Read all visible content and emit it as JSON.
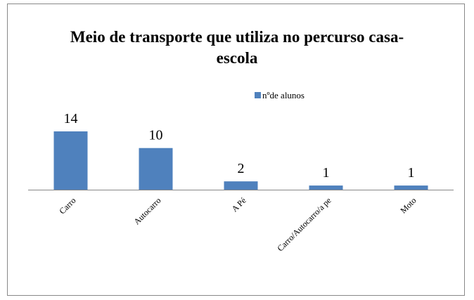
{
  "chart_data": {
    "type": "bar",
    "title": "Meio de transporte que utiliza no percurso casa-escola",
    "categories": [
      "Carro",
      "Autocarro",
      "A Pé",
      "Carro/Autocarro/a pe",
      "Moto"
    ],
    "series": [
      {
        "name": "nºde alunos",
        "color": "#4f81bd",
        "values": [
          14,
          10,
          2,
          1,
          1
        ]
      }
    ],
    "legend": "top",
    "grid": false
  }
}
